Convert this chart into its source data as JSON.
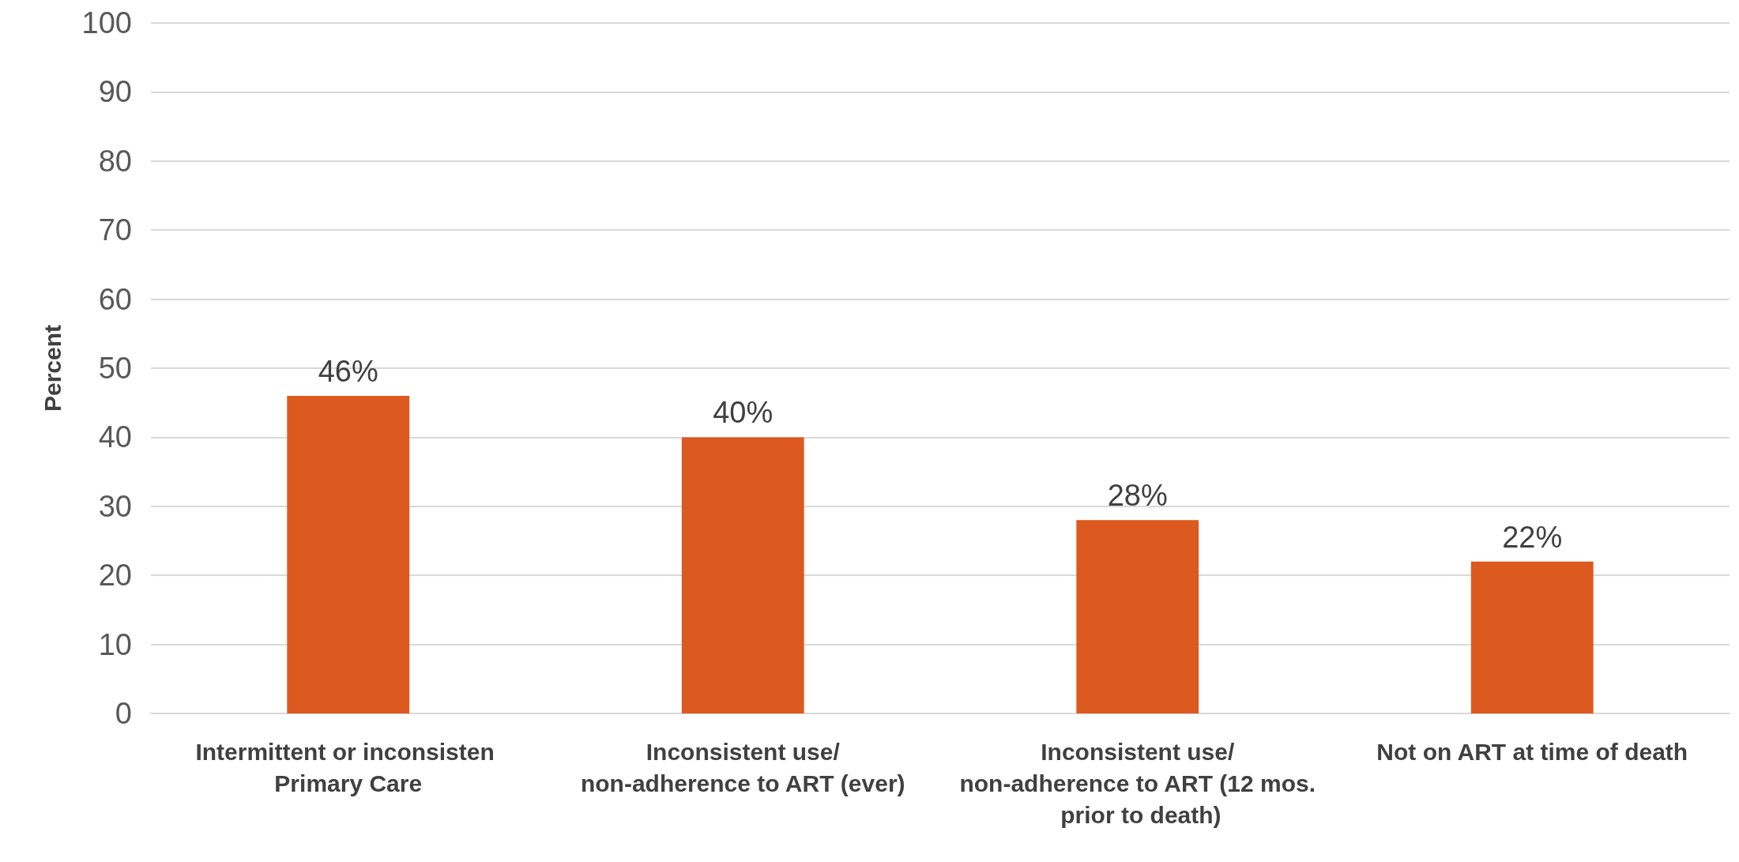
{
  "chart_data": {
    "type": "bar",
    "ylabel": "Percent",
    "categories": [
      "Intermittent or inconsisten Primary Care",
      "Inconsistent use/non-adherence to ART (ever)",
      "Inconsistent use/non-adherence to ART (12 mos. prior to death)",
      "Not on ART at time of death"
    ],
    "values": [
      46,
      40,
      28,
      22
    ],
    "value_labels": [
      "46%",
      "40%",
      "28%",
      "22%"
    ],
    "color": "#dc5a1f",
    "ylim": [
      0,
      100
    ],
    "yticks": [
      0,
      10,
      20,
      30,
      40,
      50,
      60,
      70,
      80,
      90,
      100
    ],
    "grid": "y"
  }
}
